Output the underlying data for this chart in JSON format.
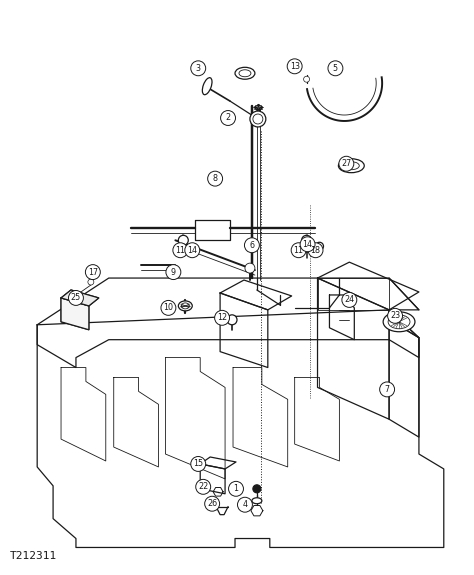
{
  "figure_width": 4.74,
  "figure_height": 5.75,
  "dpi": 100,
  "bg_color": "#ffffff",
  "line_color": "#1a1a1a",
  "diagram_id": "T212311",
  "lw": 0.9,
  "lw_thick": 1.4,
  "lw_thin": 0.6,
  "label_r": 7.5,
  "label_fs": 5.8,
  "parts_labels": [
    [
      236,
      490,
      "1"
    ],
    [
      228,
      117,
      "2"
    ],
    [
      198,
      67,
      "3"
    ],
    [
      245,
      506,
      "4"
    ],
    [
      336,
      67,
      "5"
    ],
    [
      252,
      245,
      "6"
    ],
    [
      388,
      390,
      "7"
    ],
    [
      215,
      178,
      "8"
    ],
    [
      173,
      272,
      "9"
    ],
    [
      168,
      308,
      "10"
    ],
    [
      180,
      250,
      "11"
    ],
    [
      222,
      318,
      "12"
    ],
    [
      295,
      65,
      "13"
    ],
    [
      192,
      250,
      "14"
    ],
    [
      198,
      465,
      "15"
    ],
    [
      92,
      272,
      "17"
    ],
    [
      316,
      250,
      "18"
    ],
    [
      203,
      488,
      "22"
    ],
    [
      396,
      316,
      "23"
    ],
    [
      350,
      300,
      "24"
    ],
    [
      75,
      298,
      "25"
    ],
    [
      212,
      505,
      "26"
    ],
    [
      347,
      163,
      "27"
    ],
    [
      299,
      250,
      "11"
    ],
    [
      308,
      244,
      "14"
    ]
  ]
}
